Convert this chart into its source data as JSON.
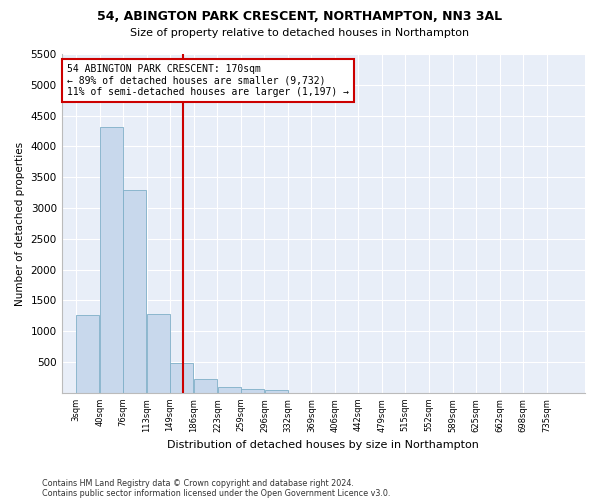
{
  "title": "54, ABINGTON PARK CRESCENT, NORTHAMPTON, NN3 3AL",
  "subtitle": "Size of property relative to detached houses in Northampton",
  "xlabel": "Distribution of detached houses by size in Northampton",
  "ylabel": "Number of detached properties",
  "footnote1": "Contains HM Land Registry data © Crown copyright and database right 2024.",
  "footnote2": "Contains public sector information licensed under the Open Government Licence v3.0.",
  "bar_color": "#c8d8ec",
  "bar_edge_color": "#7fafc8",
  "bg_color": "#e8eef8",
  "plot_bg_color": "#e8eef8",
  "fig_bg_color": "#ffffff",
  "grid_color": "#ffffff",
  "vline_value": 170,
  "vline_color": "#cc0000",
  "annotation_text": "54 ABINGTON PARK CRESCENT: 170sqm\n← 89% of detached houses are smaller (9,732)\n11% of semi-detached houses are larger (1,197) →",
  "annotation_box_color": "#ffffff",
  "annotation_box_edge": "#cc0000",
  "categories": [
    "3sqm",
    "40sqm",
    "76sqm",
    "113sqm",
    "149sqm",
    "186sqm",
    "223sqm",
    "259sqm",
    "296sqm",
    "332sqm",
    "369sqm",
    "406sqm",
    "442sqm",
    "479sqm",
    "515sqm",
    "552sqm",
    "589sqm",
    "625sqm",
    "662sqm",
    "698sqm",
    "735sqm"
  ],
  "bin_edges": [
    3,
    40,
    76,
    113,
    149,
    186,
    223,
    259,
    296,
    332,
    369,
    406,
    442,
    479,
    515,
    552,
    589,
    625,
    662,
    698,
    735
  ],
  "values": [
    1260,
    4320,
    3290,
    1280,
    490,
    220,
    95,
    70,
    55,
    0,
    0,
    0,
    0,
    0,
    0,
    0,
    0,
    0,
    0,
    0
  ],
  "ylim": [
    0,
    5500
  ],
  "yticks": [
    0,
    500,
    1000,
    1500,
    2000,
    2500,
    3000,
    3500,
    4000,
    4500,
    5000,
    5500
  ]
}
